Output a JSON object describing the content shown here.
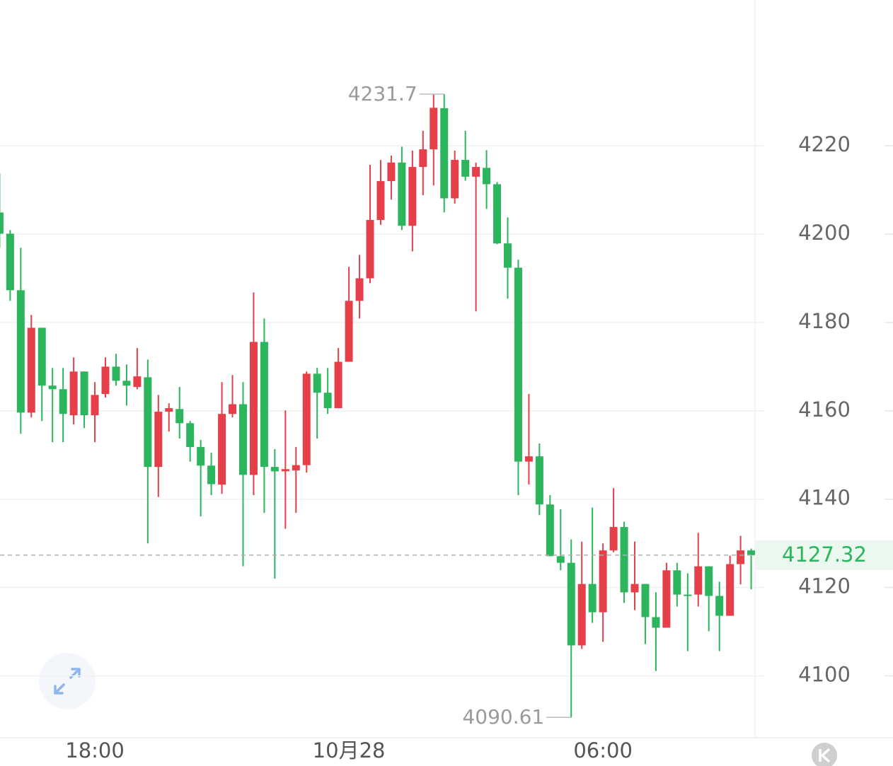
{
  "chart_data": {
    "type": "candlestick",
    "categories": [
      null,
      null,
      null,
      null,
      null,
      null,
      null,
      null,
      null,
      "18:00",
      null,
      null,
      null,
      null,
      null,
      null,
      null,
      null,
      null,
      null,
      null,
      null,
      null,
      null,
      null,
      null,
      null,
      null,
      null,
      null,
      null,
      null,
      null,
      "10月28",
      null,
      null,
      null,
      null,
      null,
      null,
      null,
      null,
      null,
      null,
      null,
      null,
      null,
      null,
      null,
      null,
      null,
      null,
      null,
      null,
      null,
      null,
      null,
      "06:00",
      null,
      null,
      null,
      null,
      null,
      null,
      null,
      null,
      null,
      null,
      null,
      null,
      null,
      null
    ],
    "open": [
      4204.9,
      4200.1,
      4187.3,
      4159.6,
      4178.8,
      4165.7,
      4164.9,
      4159,
      4168.9,
      4159,
      4163.8,
      4170,
      4166.8,
      4165.4,
      4167.6,
      4147.3,
      4159.8,
      4160.4,
      4157.2,
      4151.8,
      4147.6,
      4143.3,
      4159.3,
      4161.5,
      4145.5,
      4175.6,
      4147.3,
      4146.3,
      4146.5,
      4147.7,
      4168.4,
      4164.1,
      4160.6,
      4171.1,
      4184.9,
      4190,
      4203.2,
      4212,
      4216.2,
      4201.9,
      4215.2,
      4219.2,
      4228.5,
      4208.1,
      4216.8,
      4213,
      4215,
      4211.3,
      4197.9,
      4192.4,
      4148.5,
      4149.7,
      4138.8,
      4127.1,
      4125.6,
      4106.9,
      4120.8,
      4114.4,
      4128.4,
      4133.7,
      4118.9,
      4120.8,
      4113.3,
      4110.9,
      4123.9,
      4118.4,
      4118.4,
      4124.8,
      4118.1,
      4113.6,
      4125.3,
      4128.4
    ],
    "high": [
      4213.8,
      4200.9,
      4196.9,
      4181.7,
      4178.8,
      4169.7,
      4169.7,
      4172.1,
      4168.9,
      4166.5,
      4172.1,
      4172.9,
      4170.5,
      4174.2,
      4171.6,
      4163.6,
      4161.7,
      4165.4,
      4157.7,
      4153.4,
      4150.5,
      4166.5,
      4168.1,
      4166.5,
      4186.8,
      4180.9,
      4151.3,
      4160.1,
      4151.8,
      4168.9,
      4169.7,
      4169.7,
      4174.2,
      4192.6,
      4195.3,
      4215.7,
      4216.8,
      4217.8,
      4219.8,
      4218.9,
      4223.4,
      4231.64,
      4231.7,
      4218.9,
      4223.4,
      4216.2,
      4219,
      4211.8,
      4203.8,
      4194.2,
      4163.8,
      4152.6,
      4140.9,
      4137.7,
      4130.9,
      4130.4,
      4138.1,
      4130,
      4142.5,
      4134.9,
      4130.4,
      4120.8,
      4118.9,
      4125.6,
      4125.6,
      4123.2,
      4132.4,
      4124.8,
      4121.3,
      4127.2,
      4131.7,
      4128.8
    ],
    "low": [
      4196.9,
      4184.9,
      4154.8,
      4158.5,
      4157.7,
      4152.9,
      4152.9,
      4156.9,
      4156.1,
      4152.9,
      4163,
      4165.7,
      4161.2,
      4164.9,
      4130,
      4140.5,
      4155.3,
      4153.7,
      4148.5,
      4136.1,
      4140.9,
      4141.2,
      4158.5,
      4124.8,
      4140.9,
      4136.9,
      4122,
      4133.3,
      4136.9,
      4146,
      4153.7,
      4159.3,
      4160.6,
      4171.1,
      4180.9,
      4188.9,
      4202.1,
      4207.8,
      4200.9,
      4196.1,
      4208.8,
      4211,
      4204.9,
      4206.9,
      4212.1,
      4182.5,
      4205.7,
      4197.7,
      4185.4,
      4140.9,
      4143.3,
      4136.4,
      4127.1,
      4123.9,
      4090.61,
      4106.1,
      4112,
      4107.7,
      4128,
      4116.5,
      4114.9,
      4107.2,
      4101.1,
      4110.9,
      4115.7,
      4105.6,
      4115.7,
      4110.1,
      4105.6,
      4113.6,
      4120.7,
      4119.6
    ],
    "close": [
      4200.1,
      4187.3,
      4159.6,
      4178.8,
      4165.7,
      4164.9,
      4159.3,
      4168.9,
      4159,
      4163.6,
      4170,
      4166.8,
      4165.7,
      4167.8,
      4147.3,
      4159.8,
      4160.6,
      4157.2,
      4151.8,
      4147.6,
      4143.4,
      4159.3,
      4161.5,
      4145.5,
      4175.6,
      4147.3,
      4146.3,
      4146.8,
      4147.7,
      4168.4,
      4164.1,
      4160.6,
      4171.1,
      4184.9,
      4190,
      4203.2,
      4212,
      4216.2,
      4201.9,
      4215.2,
      4219.2,
      4228.6,
      4208.1,
      4216.8,
      4213,
      4215.2,
      4211.3,
      4197.9,
      4192.4,
      4148.5,
      4149.7,
      4138.8,
      4127.1,
      4125.6,
      4106.9,
      4120.8,
      4114.4,
      4128.4,
      4133.7,
      4118.9,
      4120.8,
      4113.3,
      4110.9,
      4123.9,
      4118.4,
      4118.3,
      4124.8,
      4118.1,
      4113.6,
      4125.3,
      4128.4,
      4127.32
    ],
    "up_color": "#e5404a",
    "down_color": "#2db55d",
    "ylim": [
      4086,
      4253
    ],
    "yticks": [
      4100,
      4120,
      4140,
      4160,
      4180,
      4200,
      4220
    ],
    "grid": true
  }
}
